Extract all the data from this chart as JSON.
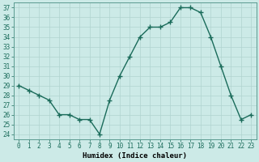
{
  "x": [
    0,
    1,
    2,
    3,
    4,
    5,
    6,
    7,
    8,
    9,
    10,
    11,
    12,
    13,
    14,
    15,
    16,
    17,
    18,
    19,
    20,
    21,
    22,
    23
  ],
  "y": [
    29,
    28.5,
    28,
    27.5,
    26,
    26,
    25.5,
    25.5,
    24,
    27.5,
    30,
    32,
    34,
    35,
    35,
    35.5,
    37,
    37,
    36.5,
    34,
    31,
    28,
    25.5,
    26
  ],
  "line_color": "#1a6b5a",
  "marker": "+",
  "marker_size": 4,
  "linewidth": 1.0,
  "bg_color": "#cceae7",
  "grid_color_major": "#b0d4d0",
  "grid_color_minor": "#c8e4e1",
  "xlabel": "Humidex (Indice chaleur)",
  "ylim": [
    23.5,
    37.5
  ],
  "xlim": [
    -0.5,
    23.5
  ],
  "yticks": [
    24,
    25,
    26,
    27,
    28,
    29,
    30,
    31,
    32,
    33,
    34,
    35,
    36,
    37
  ],
  "xticks": [
    0,
    1,
    2,
    3,
    4,
    5,
    6,
    7,
    8,
    9,
    10,
    11,
    12,
    13,
    14,
    15,
    16,
    17,
    18,
    19,
    20,
    21,
    22,
    23
  ],
  "label_fontsize": 6.5,
  "tick_fontsize": 5.5
}
